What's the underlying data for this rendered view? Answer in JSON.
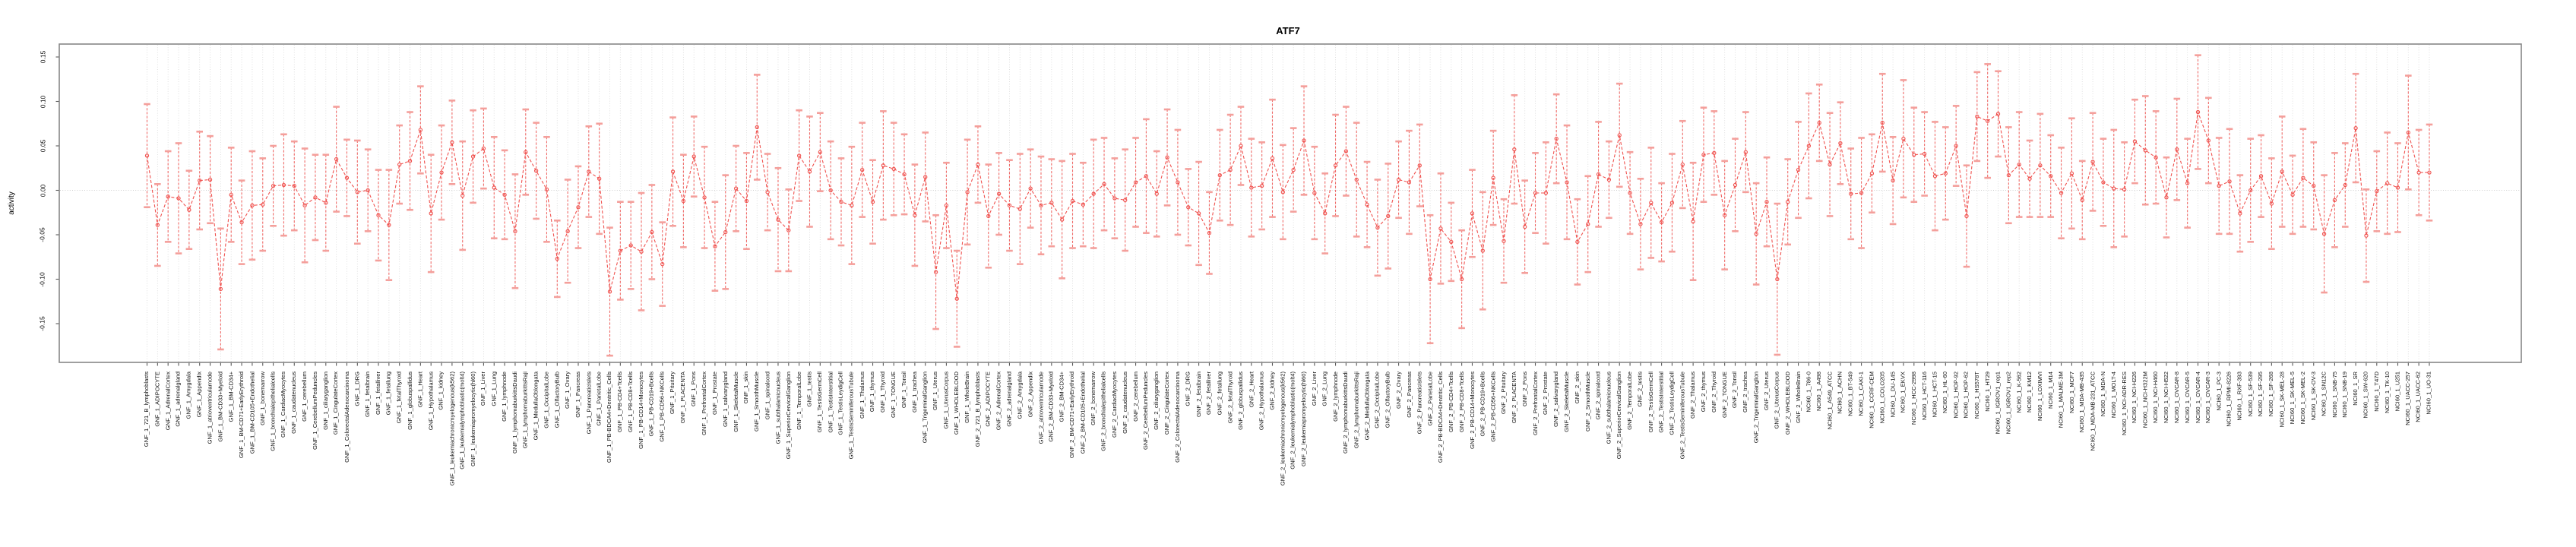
{
  "chart_data": {
    "type": "line",
    "title": "ATF7",
    "ylabel": "activity",
    "xlabel": "",
    "ylim": [
      -0.194,
      0.164
    ],
    "yticks": [
      0.15,
      0.1,
      0.05,
      0.0,
      -0.05,
      -0.1,
      -0.15
    ],
    "ytick_labels": [
      "0.15",
      "0.10",
      "0.05",
      "0.00",
      "-0.05",
      "-0.10",
      "-0.15"
    ],
    "legend": "none",
    "grid": "dotted vertical gridline per sample, dotted horizontal line at 0",
    "marker": "open-circle",
    "error_bars": true,
    "colors": {
      "line": "#f0524f",
      "marker": "#f0524f",
      "error_cap": "#f49f9b",
      "gridline": "#dcdcdc",
      "zero_line": "#cfcfcf",
      "border": "#878787",
      "tick": "#5a5a5a",
      "text": "#000000",
      "background": "#ffffff"
    },
    "categories": [
      "GNF_1_721_B_lymphoblasts",
      "GNF_1_ADIPOCYTE",
      "GNF_1_AdrenalCortex",
      "GNF_1_adrenalgland",
      "GNF_1_Amygdala",
      "GNF_1_Appendix",
      "GNF_1_atrioventricularnode",
      "GNF_1_BM-CD33+Myeloid",
      "GNF_1_BM-CD34+",
      "GNF_1_BM-CD71+EarlyErythroid",
      "GNF_1_BM-CD105+Endothelial",
      "GNF_1_bonemarrow",
      "GNF_1_bronchialepithelialcells",
      "GNF_1_CardiacMyocytes",
      "GNF_1_caudatenucleus",
      "GNF_1_cerebellum",
      "GNF_1_CerebellumPeduncles",
      "GNF_1_ciliaryganglion",
      "GNF_1_CingulateCortex",
      "GNF_1_ColorectalAdenocarcinoma",
      "GNF_1_DRG",
      "GNF_1_fetalbrain",
      "GNF_1_fetalliver",
      "GNF_1_fetallung",
      "GNF_1_fetalThyroid",
      "GNF_1_globuspallidus",
      "GNF_1_Heart",
      "GNF_1_Hypothalamus",
      "GNF_1_kidney",
      "GNF_1_leukemiachronicmyelogenous(k562)",
      "GNF_1_leukemialymphoblastic(molt4)",
      "GNF_1_leukemiapromyelocytic(hl60)",
      "GNF_1_Liver",
      "GNF_1_Lung",
      "GNF_1_lymphnode",
      "GNF_1_lymphomaburkittsDaudi",
      "GNF_1_lymphomaburkittsRaji",
      "GNF_1_MedullaOblongata",
      "GNF_1_OccipitalLobe",
      "GNF_1_OlfactoryBulb",
      "GNF_1_Ovary",
      "GNF_1_Pancreas",
      "GNF_1_PancreaticIslets",
      "GNF_1_ParietalLobe",
      "GNF_1_PB-BDCA4+Dentritic_Cells",
      "GNF_1_PB-CD4+Tcells",
      "GNF_1_PB-CD8+Tcells",
      "GNF_1_PB-CD14+Monocytes",
      "GNF_1_PB-CD19+Bcells",
      "GNF_1_PB-CD56+NKCells",
      "GNF_1_Pituitary",
      "GNF_1_PLACENTA",
      "GNF_1_Pons",
      "GNF_1_PrefrontalCortex",
      "GNF_1_Prostate",
      "GNF_1_salivarygland",
      "GNF_1_SkeletalMuscle",
      "GNF_1_skin",
      "GNF_1_SmoothMuscle",
      "GNF_1_spinalcord",
      "GNF_1_subthalamicnucleus",
      "GNF_1_SuperiorCervicalGanglion",
      "GNF_1_TemporalLobe",
      "GNF_1_testis",
      "GNF_1_TestisGermCell",
      "GNF_1_TestisInterstitial",
      "GNF_1_TestisLeydigCell",
      "GNF_1_TestisSeminiferousTubule",
      "GNF_1_Thalamus",
      "GNF_1_thymus",
      "GNF_1_Thyroid",
      "GNF_1_TONGUE",
      "GNF_1_Tonsil",
      "GNF_1_trachea",
      "GNF_1_TrigeminalGanglion",
      "GNF_1_Uterus",
      "GNF_1_UterusCorpus",
      "GNF_1_WHOLEBLOOD",
      "GNF_1_WholeBrain",
      "GNF_2_721_B_lymphoblasts",
      "GNF_2_ADIPOCYTE",
      "GNF_2_AdrenalCortex",
      "GNF_2_adrenalgland",
      "GNF_2_Amygdala",
      "GNF_2_Appendix",
      "GNF_2_atrioventricularnode",
      "GNF_2_BM-CD33+Myeloid",
      "GNF_2_BM-CD34+",
      "GNF_2_BM-CD71+EarlyErythroid",
      "GNF_2_BM-CD105+Endothelial",
      "GNF_2_bonemarrow",
      "GNF_2_bronchialepithelialcells",
      "GNF_2_CardiacMyocytes",
      "GNF_2_caudatenucleus",
      "GNF_2_cerebellum",
      "GNF_2_CerebellumPeduncles",
      "GNF_2_ciliaryganglion",
      "GNF_2_CingulateCortex",
      "GNF_2_ColorectalAdenocarcinoma",
      "GNF_2_DRG",
      "GNF_2_fetalbrain",
      "GNF_2_fetalliver",
      "GNF_2_fetallung",
      "GNF_2_fetalThyroid",
      "GNF_2_globuspallidus",
      "GNF_2_Heart",
      "GNF_2_Hypothalamus",
      "GNF_2_kidney",
      "GNF_2_leukemiachronicmyelogenous(k562)",
      "GNF_2_leukemialymphoblastic(molt4)",
      "GNF_2_leukemiapromyelocytic(hl60)",
      "GNF_2_Liver",
      "GNF_2_Lung",
      "GNF_2_lymphnode",
      "GNF_2_lymphomaburkittsDaudi",
      "GNF_2_lymphomaburkittsRaji",
      "GNF_2_MedullaOblongata",
      "GNF_2_OccipitalLobe",
      "GNF_2_OlfactoryBulb",
      "GNF_2_Ovary",
      "GNF_2_Pancreas",
      "GNF_2_PancreaticIslets",
      "GNF_2_ParietalLobe",
      "GNF_2_PB-BDCA4+Dentritic_Cells",
      "GNF_2_PB-CD4+Tcells",
      "GNF_2_PB-CD8+Tcells",
      "GNF_2_PB-CD14+Monocytes",
      "GNF_2_PB-CD19+Bcells",
      "GNF_2_PB-CD56+NKCells",
      "GNF_2_Pituitary",
      "GNF_2_PLACENTA",
      "GNF_2_Pons",
      "GNF_2_PrefrontalCortex",
      "GNF_2_Prostate",
      "GNF_2_salivarygland",
      "GNF_2_SkeletalMuscle",
      "GNF_2_skin",
      "GNF_2_SmoothMuscle",
      "GNF_2_spinalcord",
      "GNF_2_subthalamicnucleus",
      "GNF_2_SuperiorCervicalGanglion",
      "GNF_2_TemporalLobe",
      "GNF_2_testis",
      "GNF_2_TestisGermCell",
      "GNF_2_TestisInterstitial",
      "GNF_2_TestisLeydigCell",
      "GNF_2_TestisSeminiferousTubule",
      "GNF_2_Thalamus",
      "GNF_2_thymus",
      "GNF_2_Thyroid",
      "GNF_2_TONGUE",
      "GNF_2_Tonsil",
      "GNF_2_trachea",
      "GNF_2_TrigeminalGanglion",
      "GNF_2_Uterus",
      "GNF_2_UterusCorpus",
      "GNF_2_WHOLEBLOOD",
      "GNF_2_WholeBrain",
      "NCI60_1_786-0",
      "NCI60_1_A498",
      "NCI60_1_A549_ATCC",
      "NCI60_1_ACHN",
      "NCI60_1_BT-549",
      "NCI60_1_CAKI-1",
      "NCI60_1_CCRF-CEM",
      "NCI60_1_COLO205",
      "NCI60_1_DU-145",
      "NCI60_1_EKVX",
      "NCI60_1_HCC-2998",
      "NCI60_1_HCT-116",
      "NCI60_1_HCT-15",
      "NCI60_1_HL-60",
      "NCI60_1_HOP-92",
      "NCI60_1_HOP-62",
      "NCI60_1_HS578T",
      "NCI60_1_HT29",
      "NCI60_1_IGROV1_rep1",
      "NCI60_1_IGROV1_rep2",
      "NCI60_1_K-562",
      "NCI60_1_KM12",
      "NCI60_1_LOXIMVI",
      "NCI60_1_M14",
      "NCI60_1_MALME-3M",
      "NCI60_1_MCF7",
      "NCI60_1_MDA-MB-435",
      "NCI60_1_MDA-MB-231_ATCC",
      "NCI60_1_MDA-N",
      "NCI60_1_MOLT-4",
      "NCI60_1_NCI-ADR-RES",
      "NCI60_1_NCI-H226",
      "NCI60_1_NCI-H322M",
      "NCI60_1_NCI-H460",
      "NCI60_1_NCI-H522",
      "NCI60_1_OVCAR-8",
      "NCI60_1_OVCAR-5",
      "NCI60_1_OVCAR-4",
      "NCI60_1_OVCAR-3",
      "NCI60_1_PC-3",
      "NCI60_1_RPMI-8226",
      "NCI60_1_RXF-393",
      "NCI60_1_SF-539",
      "NCI60_1_SF-295",
      "NCI60_1_SF-268",
      "NCI60_1_SK-MEL-28",
      "NCI60_1_SK-MEL-5",
      "NCI60_1_SK-MEL-2",
      "NCI60_1_SK-OV-3",
      "NCI60_1_SN12C",
      "NCI60_1_SNB-75",
      "NCI60_1_SNB-19",
      "NCI60_1_SR",
      "NCI60_1_SW-620",
      "NCI60_1_T47D",
      "NCI60_1_TK-10",
      "NCI60_1_U251",
      "NCI60_1_UACC-257",
      "NCI60_1_UACC-62",
      "NCI60_1_UO-31"
    ],
    "values": [
      0.039,
      -0.039,
      -0.007,
      -0.009,
      -0.022,
      0.011,
      0.012,
      -0.111,
      -0.005,
      -0.036,
      -0.017,
      -0.016,
      0.005,
      0.006,
      0.005,
      -0.017,
      -0.008,
      -0.014,
      0.035,
      0.014,
      -0.002,
      0.0,
      -0.028,
      -0.039,
      0.029,
      0.033,
      0.068,
      -0.026,
      0.02,
      0.054,
      -0.006,
      0.038,
      0.047,
      0.003,
      -0.005,
      -0.046,
      0.043,
      0.022,
      0.001,
      -0.077,
      -0.046,
      -0.019,
      0.021,
      0.013,
      -0.114,
      -0.068,
      -0.062,
      -0.069,
      -0.047,
      -0.083,
      0.021,
      -0.012,
      0.038,
      -0.008,
      -0.063,
      -0.047,
      0.002,
      -0.012,
      0.071,
      -0.002,
      -0.033,
      -0.045,
      0.039,
      0.021,
      0.043,
      0.0,
      -0.013,
      -0.017,
      0.023,
      -0.013,
      0.028,
      0.024,
      0.018,
      -0.028,
      0.015,
      -0.092,
      -0.017,
      -0.122,
      -0.002,
      0.029,
      -0.029,
      -0.004,
      -0.017,
      -0.021,
      0.002,
      -0.017,
      -0.014,
      -0.033,
      -0.012,
      -0.016,
      -0.004,
      0.007,
      -0.009,
      -0.011,
      0.009,
      0.016,
      -0.004,
      0.037,
      0.009,
      -0.019,
      -0.026,
      -0.048,
      0.017,
      0.023,
      0.05,
      0.003,
      0.005,
      0.036,
      -0.002,
      0.023,
      0.056,
      -0.003,
      -0.026,
      0.028,
      0.044,
      0.012,
      -0.016,
      -0.042,
      -0.029,
      0.012,
      0.009,
      0.028,
      -0.1,
      -0.043,
      -0.058,
      -0.1,
      -0.026,
      -0.068,
      0.014,
      -0.057,
      0.046,
      -0.041,
      -0.003,
      -0.003,
      0.058,
      0.009,
      -0.058,
      -0.038,
      0.018,
      0.012,
      0.062,
      -0.003,
      -0.038,
      -0.014,
      -0.036,
      -0.014,
      0.029,
      -0.035,
      0.04,
      0.042,
      -0.028,
      0.006,
      0.043,
      -0.049,
      -0.013,
      -0.1,
      -0.013,
      0.023,
      0.05,
      0.076,
      0.029,
      0.053,
      -0.004,
      -0.003,
      0.019,
      0.076,
      0.011,
      0.058,
      0.04,
      0.041,
      0.016,
      0.019,
      0.05,
      -0.029,
      0.083,
      0.078,
      0.086,
      0.017,
      0.029,
      0.013,
      0.028,
      0.016,
      -0.003,
      0.019,
      -0.011,
      0.032,
      0.009,
      0.002,
      0.001,
      0.055,
      0.045,
      0.037,
      -0.008,
      0.046,
      0.008,
      0.088,
      0.056,
      0.005,
      0.01,
      -0.026,
      0.0,
      0.016,
      -0.015,
      0.021,
      -0.005,
      0.014,
      0.005,
      -0.049,
      -0.011,
      0.006,
      0.07,
      -0.051,
      -0.001,
      0.008,
      0.003,
      0.065,
      0.02,
      0.02
    ],
    "errors": [
      0.058,
      0.046,
      0.051,
      0.062,
      0.044,
      0.055,
      0.049,
      0.068,
      0.053,
      0.047,
      0.061,
      0.052,
      0.045,
      0.057,
      0.05,
      0.064,
      0.048,
      0.054,
      0.059,
      0.043,
      0.058,
      0.046,
      0.051,
      0.062,
      0.044,
      0.055,
      0.049,
      0.066,
      0.053,
      0.047,
      0.061,
      0.052,
      0.045,
      0.057,
      0.05,
      0.064,
      0.048,
      0.054,
      0.059,
      0.043,
      0.058,
      0.046,
      0.051,
      0.062,
      0.072,
      0.055,
      0.049,
      0.066,
      0.053,
      0.047,
      0.061,
      0.052,
      0.045,
      0.057,
      0.05,
      0.064,
      0.048,
      0.054,
      0.059,
      0.043,
      0.058,
      0.046,
      0.051,
      0.062,
      0.044,
      0.055,
      0.049,
      0.066,
      0.053,
      0.047,
      0.061,
      0.052,
      0.045,
      0.057,
      0.05,
      0.064,
      0.048,
      0.054,
      0.059,
      0.043,
      0.058,
      0.046,
      0.051,
      0.062,
      0.044,
      0.055,
      0.049,
      0.066,
      0.053,
      0.047,
      0.061,
      0.052,
      0.045,
      0.057,
      0.05,
      0.064,
      0.048,
      0.054,
      0.059,
      0.043,
      0.058,
      0.046,
      0.051,
      0.062,
      0.044,
      0.055,
      0.049,
      0.066,
      0.053,
      0.047,
      0.061,
      0.052,
      0.045,
      0.057,
      0.05,
      0.064,
      0.048,
      0.054,
      0.059,
      0.043,
      0.058,
      0.046,
      0.072,
      0.062,
      0.044,
      0.055,
      0.049,
      0.066,
      0.053,
      0.047,
      0.061,
      0.052,
      0.045,
      0.057,
      0.05,
      0.064,
      0.048,
      0.054,
      0.059,
      0.043,
      0.058,
      0.046,
      0.051,
      0.062,
      0.044,
      0.055,
      0.049,
      0.066,
      0.053,
      0.047,
      0.061,
      0.052,
      0.045,
      0.057,
      0.05,
      0.085,
      0.048,
      0.054,
      0.059,
      0.043,
      0.058,
      0.046,
      0.051,
      0.062,
      0.044,
      0.055,
      0.049,
      0.066,
      0.053,
      0.047,
      0.061,
      0.052,
      0.045,
      0.057,
      0.05,
      0.064,
      0.048,
      0.054,
      0.059,
      0.043,
      0.058,
      0.046,
      0.051,
      0.062,
      0.044,
      0.055,
      0.049,
      0.066,
      0.053,
      0.047,
      0.061,
      0.052,
      0.045,
      0.057,
      0.05,
      0.064,
      0.048,
      0.054,
      0.059,
      0.043,
      0.058,
      0.046,
      0.051,
      0.062,
      0.044,
      0.055,
      0.049,
      0.066,
      0.053,
      0.047,
      0.061,
      0.052,
      0.045,
      0.057,
      0.05,
      0.064,
      0.048,
      0.054
    ]
  }
}
